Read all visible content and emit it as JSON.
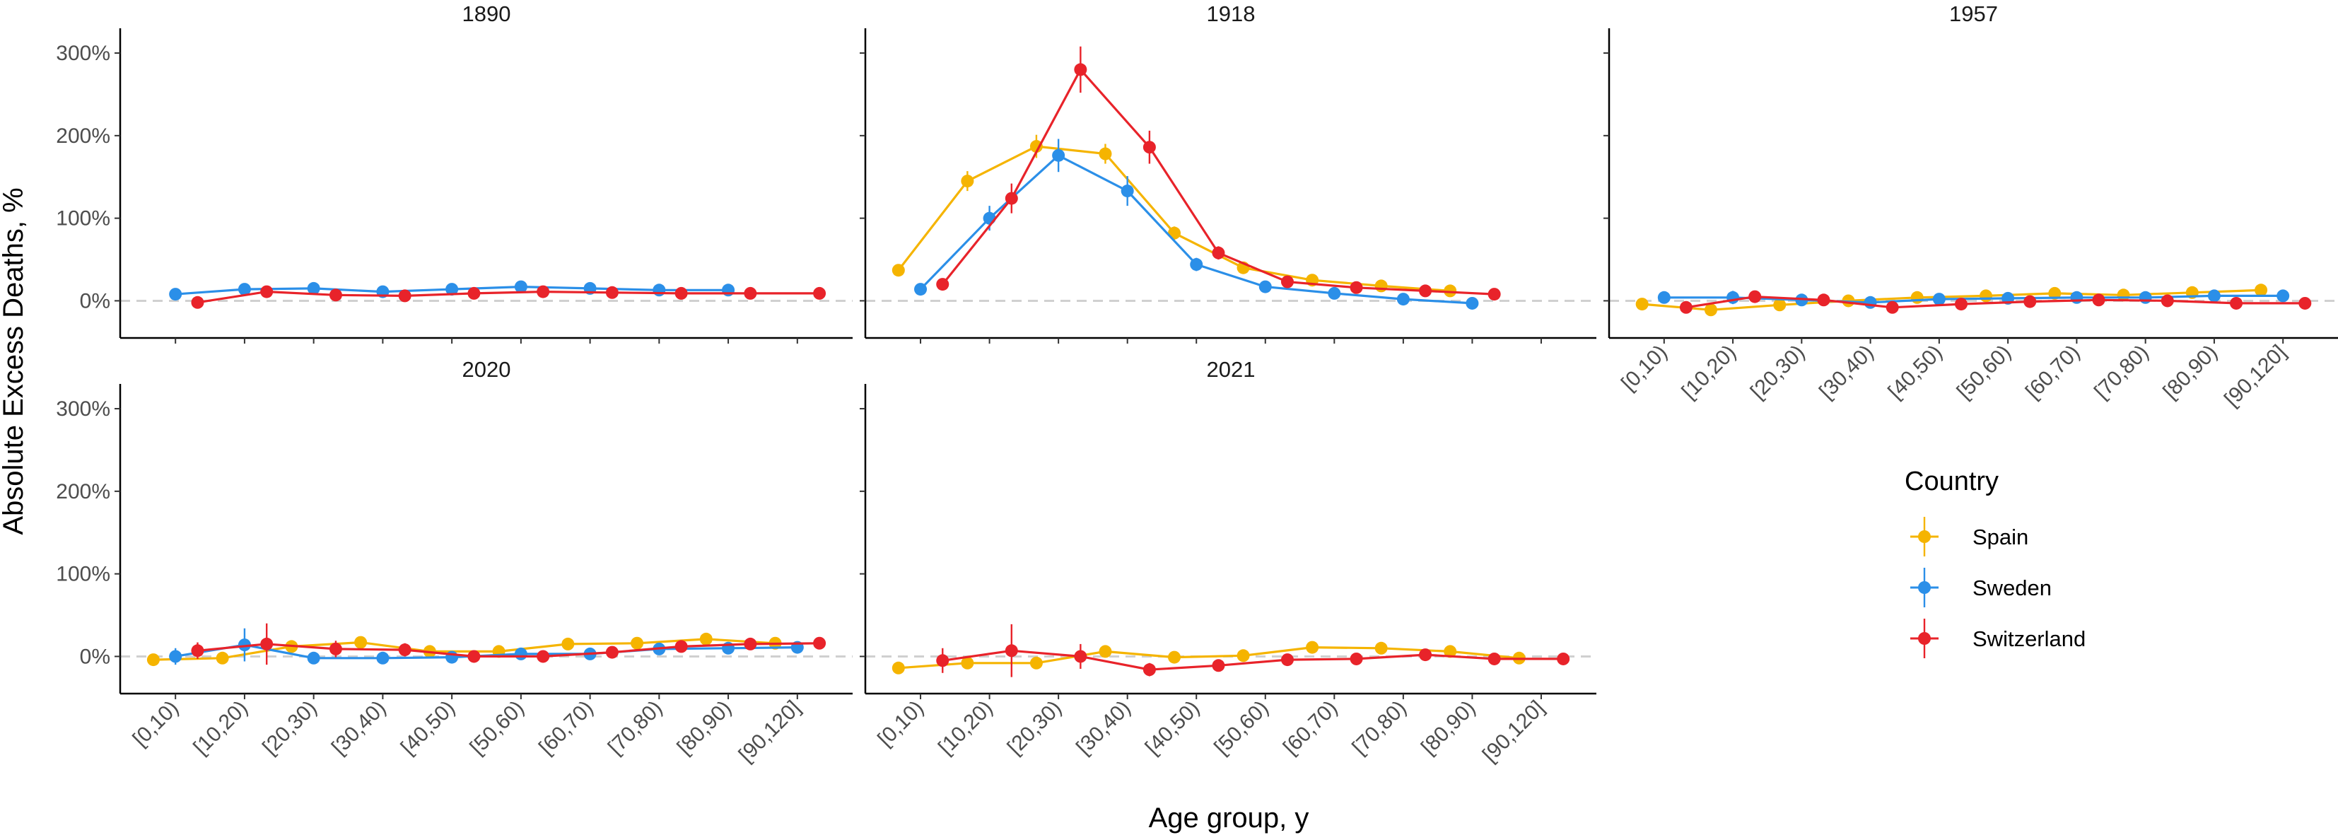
{
  "chart_data": {
    "type": "line",
    "facets": [
      "1890",
      "1918",
      "1957",
      "2020",
      "2021"
    ],
    "xlabel": "Age group, y",
    "ylabel": "Absolute Excess Deaths, %",
    "categories": [
      "[0,10)",
      "[10,20)",
      "[20,30)",
      "[30,40)",
      "[40,50)",
      "[50,60)",
      "[60,70)",
      "[70,80)",
      "[80,90)",
      "[90,120]"
    ],
    "y_ticks": [
      0,
      100,
      200,
      300
    ],
    "y_tick_labels": [
      "0%",
      "100%",
      "200%",
      "300%"
    ],
    "ylim": [
      -45,
      330
    ],
    "reference_line": 0,
    "legend": {
      "title": "Country",
      "position": "right",
      "entries": [
        "Spain",
        "Sweden",
        "Switzerland"
      ]
    },
    "colors": {
      "Spain": "#F5B400",
      "Sweden": "#2B8FE8",
      "Switzerland": "#E8232A",
      "reference": "#d0d0d0"
    },
    "panels": [
      {
        "title": "1890",
        "series": [
          {
            "name": "Sweden",
            "values": [
              8,
              14,
              15,
              11,
              14,
              17,
              15,
              13,
              13,
              null
            ],
            "errors": [
              2,
              3,
              3,
              2,
              3,
              3,
              3,
              2,
              2,
              null
            ]
          },
          {
            "name": "Switzerland",
            "values": [
              -2,
              11,
              7,
              6,
              9,
              11,
              10,
              9,
              9,
              9
            ],
            "errors": [
              3,
              4,
              3,
              2,
              2,
              2,
              2,
              2,
              2,
              2
            ]
          }
        ]
      },
      {
        "title": "1918",
        "series": [
          {
            "name": "Spain",
            "values": [
              37,
              145,
              187,
              178,
              82,
              40,
              25,
              18,
              12,
              null
            ],
            "errors": [
              6,
              12,
              14,
              12,
              8,
              5,
              4,
              3,
              3,
              null
            ]
          },
          {
            "name": "Sweden",
            "values": [
              14,
              100,
              176,
              133,
              44,
              17,
              9,
              2,
              -3,
              null
            ],
            "errors": [
              5,
              15,
              20,
              18,
              8,
              4,
              3,
              2,
              2,
              null
            ]
          },
          {
            "name": "Switzerland",
            "values": [
              20,
              124,
              280,
              186,
              58,
              23,
              16,
              12,
              8,
              null
            ],
            "errors": [
              6,
              18,
              28,
              20,
              8,
              5,
              4,
              3,
              3,
              null
            ]
          }
        ]
      },
      {
        "title": "1957",
        "series": [
          {
            "name": "Spain",
            "values": [
              -4,
              -11,
              -5,
              0,
              4,
              6,
              9,
              7,
              10,
              13
            ],
            "errors": [
              3,
              3,
              3,
              2,
              2,
              2,
              2,
              2,
              2,
              3
            ]
          },
          {
            "name": "Sweden",
            "values": [
              4,
              4,
              1,
              -2,
              2,
              3,
              4,
              4,
              6,
              6
            ],
            "errors": [
              3,
              8,
              4,
              3,
              3,
              3,
              3,
              3,
              3,
              3
            ]
          },
          {
            "name": "Switzerland",
            "values": [
              -8,
              5,
              1,
              -8,
              -4,
              -1,
              1,
              0,
              -3,
              -3
            ],
            "errors": [
              3,
              7,
              5,
              3,
              3,
              3,
              3,
              3,
              3,
              3
            ]
          }
        ]
      },
      {
        "title": "2020",
        "series": [
          {
            "name": "Spain",
            "values": [
              -4,
              -2,
              12,
              17,
              6,
              6,
              15,
              16,
              21,
              16
            ],
            "errors": [
              3,
              3,
              4,
              4,
              3,
              3,
              3,
              3,
              4,
              3
            ]
          },
          {
            "name": "Sweden",
            "values": [
              0,
              14,
              -2,
              -2,
              -1,
              3,
              3,
              9,
              10,
              11
            ],
            "errors": [
              10,
              20,
              4,
              3,
              3,
              3,
              3,
              3,
              3,
              3
            ]
          },
          {
            "name": "Switzerland",
            "values": [
              7,
              15,
              9,
              8,
              0,
              0,
              5,
              12,
              15,
              16
            ],
            "errors": [
              10,
              25,
              10,
              8,
              4,
              3,
              3,
              3,
              3,
              3
            ]
          }
        ]
      },
      {
        "title": "2021",
        "series": [
          {
            "name": "Spain",
            "values": [
              -14,
              -8,
              -8,
              6,
              -1,
              1,
              11,
              10,
              6,
              -2
            ],
            "errors": [
              4,
              4,
              4,
              4,
              3,
              3,
              3,
              3,
              3,
              3
            ]
          },
          {
            "name": "Switzerland",
            "values": [
              -5,
              7,
              0,
              -16,
              -11,
              -4,
              -3,
              2,
              -3,
              -3
            ],
            "errors": [
              15,
              32,
              15,
              8,
              6,
              4,
              4,
              4,
              3,
              3
            ]
          }
        ]
      }
    ]
  }
}
